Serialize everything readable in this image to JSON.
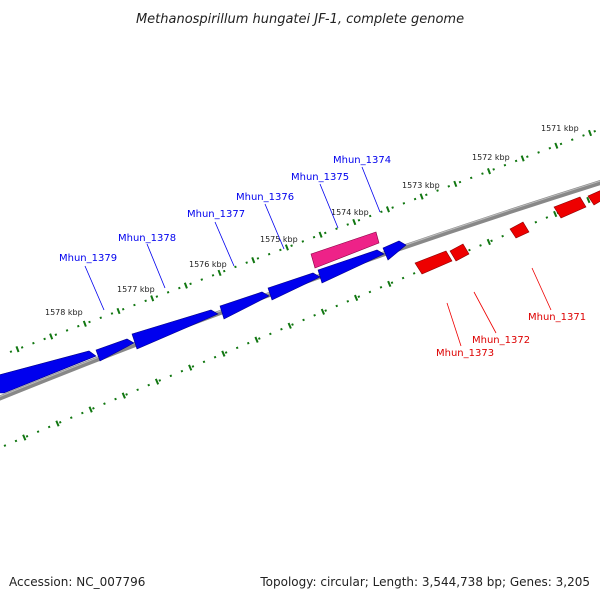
{
  "title": "Methanospirillum hungatei JF-1, complete genome",
  "footer": {
    "accession": "Accession: NC_007796",
    "summary": "Topology: circular; Length: 3,544,738 bp; Genes: 3,205"
  },
  "colors": {
    "forward_gene": "#0000ee",
    "reverse_gene": "#ee0000",
    "highlighted_gene": "#ee2288",
    "backbone": "#888888",
    "tick": "#117711"
  },
  "ruler_labels": [
    "1571 kbp",
    "1572 kbp",
    "1573 kbp",
    "1574 kbp",
    "1575 kbp",
    "1576 kbp",
    "1577 kbp",
    "1578 kbp"
  ],
  "forward_gene_labels": [
    "Mhun_1374",
    "Mhun_1375",
    "Mhun_1376",
    "Mhun_1377",
    "Mhun_1378",
    "Mhun_1379"
  ],
  "reverse_gene_labels": [
    "Mhun_1371",
    "Mhun_1372",
    "Mhun_1373"
  ]
}
